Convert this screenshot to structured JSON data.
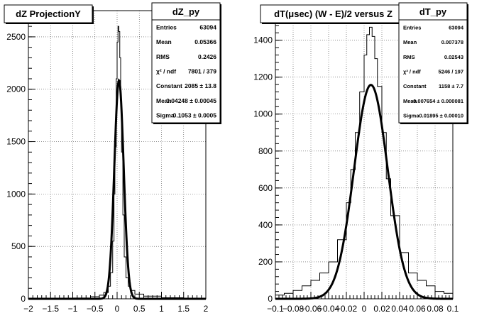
{
  "chart_data": [
    {
      "type": "histogram",
      "title": "dZ ProjectionY",
      "xlim": [
        -2,
        2
      ],
      "ylim": [
        0,
        2750
      ],
      "x_ticks": [
        {
          "v": -2,
          "label": "−2"
        },
        {
          "v": -1.5,
          "label": "−1.5"
        },
        {
          "v": -1,
          "label": "−1"
        },
        {
          "v": -0.5,
          "label": "−0.5"
        },
        {
          "v": 0,
          "label": "0"
        },
        {
          "v": 0.5,
          "label": "0.5"
        },
        {
          "v": 1,
          "label": "1"
        },
        {
          "v": 1.5,
          "label": "1.5"
        },
        {
          "v": 2,
          "label": "2"
        }
      ],
      "y_ticks": [
        {
          "v": 0,
          "label": "0"
        },
        {
          "v": 500,
          "label": "500"
        },
        {
          "v": 1000,
          "label": "1000"
        },
        {
          "v": 1500,
          "label": "1500"
        },
        {
          "v": 2000,
          "label": "2000"
        },
        {
          "v": 2500,
          "label": "2500"
        }
      ],
      "grid": true,
      "stats": {
        "name": "dZ_py",
        "rows": [
          {
            "label": "Entries",
            "value": "63094"
          },
          {
            "label": "Mean",
            "value": "0.05366"
          },
          {
            "label": "RMS",
            "value": "0.2426"
          },
          {
            "label": "χ² / ndf",
            "value": "7801 / 379"
          },
          {
            "label": "Constant",
            "value": "2085 ± 13.8"
          },
          {
            "label": "Mean",
            "value": "0.04248 ± 0.00045"
          },
          {
            "label": "Sigma",
            "value": "0.1053 ± 0.0005"
          }
        ]
      },
      "histogram": {
        "x": [
          -2.0,
          -1.5,
          -1.0,
          -0.6,
          -0.4,
          -0.3,
          -0.2,
          -0.15,
          -0.1,
          -0.07,
          -0.05,
          -0.02,
          0.0,
          0.02,
          0.04,
          0.06,
          0.08,
          0.1,
          0.13,
          0.16,
          0.2,
          0.25,
          0.3,
          0.4,
          0.6,
          1.0,
          1.5,
          2.0
        ],
        "y": [
          2,
          5,
          8,
          20,
          35,
          60,
          120,
          250,
          550,
          1000,
          1450,
          2100,
          2450,
          2600,
          2550,
          2300,
          1850,
          1400,
          800,
          400,
          200,
          120,
          80,
          45,
          25,
          10,
          5,
          2
        ]
      },
      "fit": {
        "constant": 2085,
        "mean": 0.04248,
        "sigma": 0.1053
      }
    },
    {
      "type": "histogram",
      "title": "dT(μsec) (W - E)/2 versus Z",
      "xlim": [
        -0.1,
        0.1
      ],
      "ylim": [
        0,
        1560
      ],
      "x_ticks": [
        {
          "v": -0.1,
          "label": "−0.1"
        },
        {
          "v": -0.08,
          "label": "−0.08"
        },
        {
          "v": -0.06,
          "label": "−0.06"
        },
        {
          "v": -0.04,
          "label": "−0.04"
        },
        {
          "v": -0.02,
          "label": "−0.02"
        },
        {
          "v": 0,
          "label": "0"
        },
        {
          "v": 0.02,
          "label": "0.02"
        },
        {
          "v": 0.04,
          "label": "0.04"
        },
        {
          "v": 0.06,
          "label": "0.06"
        },
        {
          "v": 0.08,
          "label": "0.08"
        },
        {
          "v": 0.1,
          "label": "0.1"
        }
      ],
      "y_ticks": [
        {
          "v": 0,
          "label": "0"
        },
        {
          "v": 200,
          "label": "200"
        },
        {
          "v": 400,
          "label": "400"
        },
        {
          "v": 600,
          "label": "600"
        },
        {
          "v": 800,
          "label": "800"
        },
        {
          "v": 1000,
          "label": "1000"
        },
        {
          "v": 1200,
          "label": "1200"
        },
        {
          "v": 1400,
          "label": "1400"
        }
      ],
      "grid": true,
      "stats": {
        "name": "dT_py",
        "rows": [
          {
            "label": "Entries",
            "value": "63094"
          },
          {
            "label": "Mean",
            "value": "0.007378"
          },
          {
            "label": "RMS",
            "value": "0.02543"
          },
          {
            "label": "χ² / ndf",
            "value": "5246 / 197"
          },
          {
            "label": "Constant",
            "value": "1158 ± 7.7"
          },
          {
            "label": "Mean",
            "value": "0.007654 ± 0.000081"
          },
          {
            "label": "Sigma",
            "value": "0.01895 ± 0.00010"
          }
        ]
      },
      "histogram": {
        "x": [
          -0.1,
          -0.09,
          -0.08,
          -0.07,
          -0.06,
          -0.05,
          -0.04,
          -0.03,
          -0.02,
          -0.015,
          -0.01,
          -0.005,
          0.0,
          0.003,
          0.006,
          0.009,
          0.012,
          0.015,
          0.02,
          0.025,
          0.03,
          0.04,
          0.05,
          0.06,
          0.07,
          0.08,
          0.09,
          0.1
        ],
        "y": [
          20,
          30,
          45,
          70,
          100,
          140,
          200,
          320,
          520,
          700,
          900,
          1120,
          1320,
          1430,
          1470,
          1420,
          1300,
          1150,
          900,
          650,
          450,
          250,
          140,
          100,
          70,
          40,
          30,
          20
        ]
      },
      "fit": {
        "constant": 1158,
        "mean": 0.007654,
        "sigma": 0.01895
      }
    }
  ]
}
